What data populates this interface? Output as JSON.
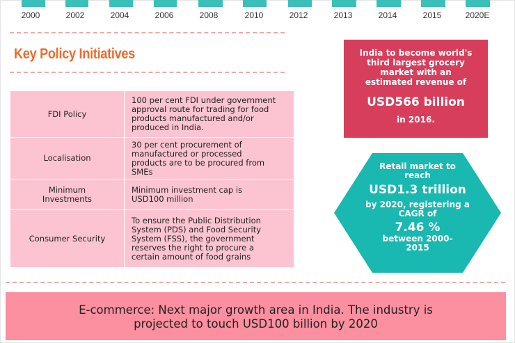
{
  "timeline": {
    "years": [
      "2000",
      "2002",
      "2004",
      "2006",
      "2008",
      "2010",
      "2012",
      "2013",
      "2014",
      "2015",
      "2020E"
    ]
  },
  "section_title": "Key Policy Initiatives",
  "policies": [
    {
      "name": "FDI Policy",
      "description": [
        "100 per cent FDI under government",
        "approval route for trading for food",
        "products manufactured and/or",
        "produced in India."
      ]
    },
    {
      "name": "Localisation",
      "description": [
        "30 per cent procurement of",
        "manufactured or processed",
        "products are to be procured from",
        "SMEs"
      ]
    },
    {
      "name": [
        "Minimum",
        "Investments"
      ],
      "description": [
        "Minimum investment cap is",
        "USD100 million"
      ]
    },
    {
      "name": "Consumer Security",
      "description": [
        "To ensure the Public Distribution",
        "System (PDS) and Food Security",
        "System (FSS), the government",
        "reserves the right to procure a",
        "certain amount of food grains"
      ]
    }
  ],
  "grocery_box": {
    "lines": [
      "India to become world's",
      "third largest grocery",
      "market with an",
      "estimated revenue of"
    ],
    "value": "USD566 billion",
    "year": "in 2016."
  },
  "retail_hexagon": {
    "line1": "Retail market to",
    "line2": "reach",
    "value": "USD1.3 trillion",
    "line3": "by 2020, registering a",
    "line4": "CAGR of",
    "cagr": "7.46 %",
    "line5": "between 2000-",
    "line6": "2015"
  },
  "banner": {
    "line1": "E-commerce: Next major growth area in India. The industry is",
    "line2": "projected to touch USD100 billion by 2020"
  },
  "colors": {
    "teal": "#3cbfb9",
    "orange": "#ef6a2b",
    "pink_table": "#fbc4d0",
    "crimson": "#d63e5c",
    "hexagon": "#19b8b0",
    "banner": "#fc8fa0"
  }
}
